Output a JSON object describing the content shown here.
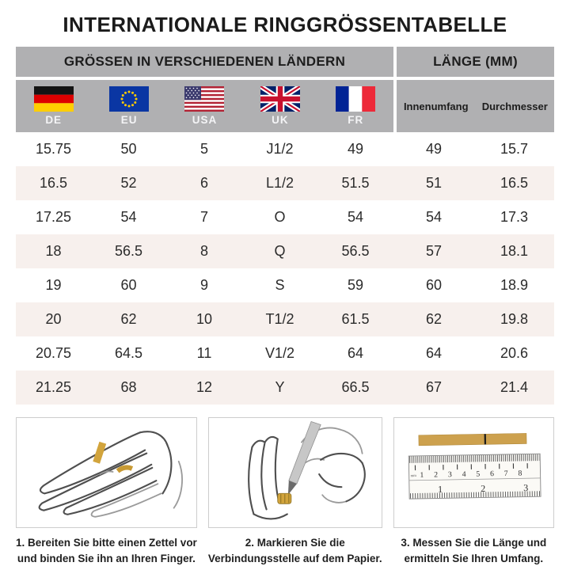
{
  "title": "INTERNATIONALE RINGGRÖSSENTABELLE",
  "table": {
    "header_left": "GRÖSSEN IN VERSCHIEDENEN LÄNDERN",
    "header_right": "LÄNGE (MM)",
    "country_columns": [
      {
        "code": "DE",
        "flag": "germany-flag"
      },
      {
        "code": "EU",
        "flag": "eu-flag"
      },
      {
        "code": "USA",
        "flag": "usa-flag"
      },
      {
        "code": "UK",
        "flag": "uk-flag"
      },
      {
        "code": "FR",
        "flag": "france-flag"
      }
    ],
    "length_columns": [
      "Innenumfang",
      "Durchmesser"
    ],
    "rows": [
      [
        "15.75",
        "50",
        "5",
        "J1/2",
        "49",
        "49",
        "15.7"
      ],
      [
        "16.5",
        "52",
        "6",
        "L1/2",
        "51.5",
        "51",
        "16.5"
      ],
      [
        "17.25",
        "54",
        "7",
        "O",
        "54",
        "54",
        "17.3"
      ],
      [
        "18",
        "56.5",
        "8",
        "Q",
        "56.5",
        "57",
        "18.1"
      ],
      [
        "19",
        "60",
        "9",
        "S",
        "59",
        "60",
        "18.9"
      ],
      [
        "20",
        "62",
        "10",
        "T1/2",
        "61.5",
        "62",
        "19.8"
      ],
      [
        "20.75",
        "64.5",
        "11",
        "V1/2",
        "64",
        "64",
        "20.6"
      ],
      [
        "21.25",
        "68",
        "12",
        "Y",
        "66.5",
        "67",
        "21.4"
      ]
    ]
  },
  "instructions": [
    {
      "line1": "1. Bereiten Sie bitte einen Zettel vor",
      "line2": "und binden Sie ihn an Ihren Finger."
    },
    {
      "line1": "2. Markieren Sie die",
      "line2": "Verbindungsstelle auf dem Papier."
    },
    {
      "line1": "3. Messen Sie die Länge und",
      "line2": "ermitteln Sie Ihren Umfang."
    }
  ],
  "ruler": {
    "unit_label": "mm",
    "cm_labels": [
      "1",
      "2",
      "3",
      "4",
      "5",
      "6",
      "7",
      "8"
    ],
    "inch_labels": [
      "1",
      "2",
      "3"
    ]
  },
  "colors": {
    "header_gray": "#b0b0b2",
    "row_alt_pink": "#f7f0ed",
    "paper_gold": "#d2a43c",
    "text_dark": "#1e1e1e"
  }
}
